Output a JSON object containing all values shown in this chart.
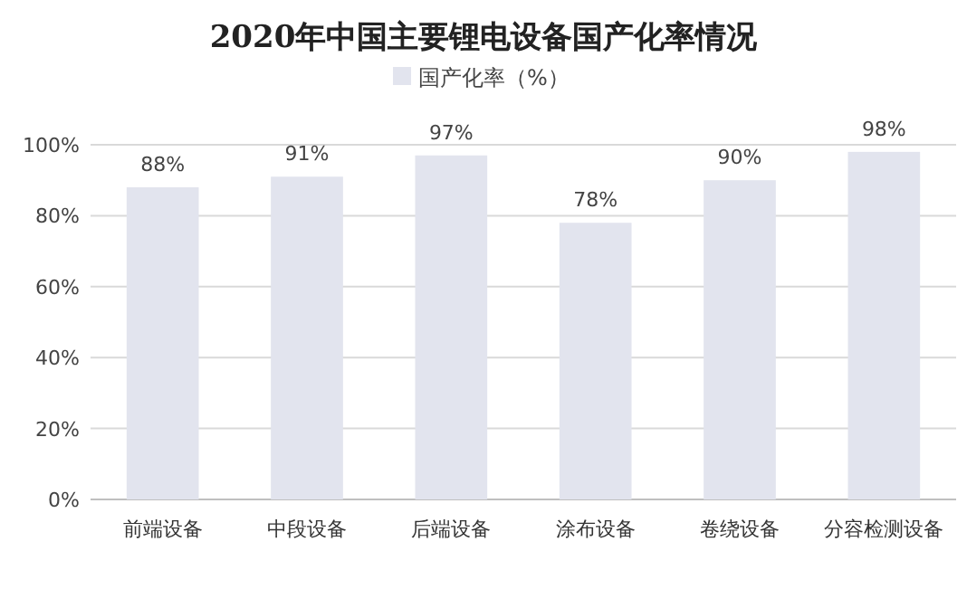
{
  "chart_data": {
    "type": "bar",
    "title": "2020年中国主要锂电设备国产化率情况",
    "categories": [
      "前端设备",
      "中段设备",
      "后端设备",
      "涂布设备",
      "卷绕设备",
      "分容检测设备"
    ],
    "series": [
      {
        "name": "国产化率（%）",
        "color": "#e2e4ee",
        "values": [
          88,
          91,
          97,
          78,
          90,
          98
        ],
        "value_labels": [
          "88%",
          "91%",
          "97%",
          "78%",
          "90%",
          "98%"
        ]
      }
    ],
    "ylim": [
      0,
      100
    ],
    "yticks": [
      {
        "value": 0,
        "label": "0%"
      },
      {
        "value": 20,
        "label": "20%"
      },
      {
        "value": 40,
        "label": "40%"
      },
      {
        "value": 60,
        "label": "60%"
      },
      {
        "value": 80,
        "label": "80%"
      },
      {
        "value": 100,
        "label": "100%"
      }
    ],
    "grid": "y",
    "legend": "top"
  }
}
